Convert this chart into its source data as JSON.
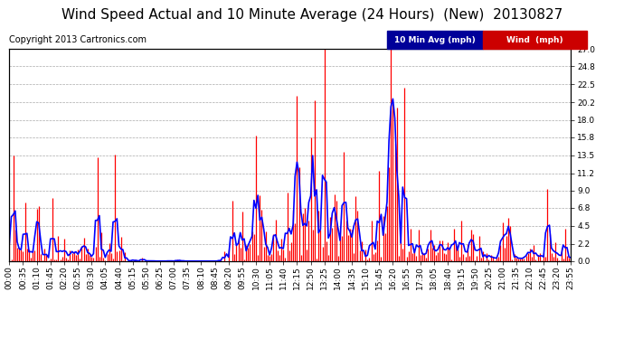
{
  "title": "Wind Speed Actual and 10 Minute Average (24 Hours)  (New)  20130827",
  "copyright": "Copyright 2013 Cartronics.com",
  "ylabel_right": [
    "0.0",
    "2.2",
    "4.5",
    "6.8",
    "9.0",
    "11.2",
    "13.5",
    "15.8",
    "18.0",
    "20.2",
    "22.5",
    "24.8",
    "27.0"
  ],
  "yticks_right": [
    0.0,
    2.2,
    4.5,
    6.8,
    9.0,
    11.2,
    13.5,
    15.8,
    18.0,
    20.2,
    22.5,
    24.8,
    27.0
  ],
  "ylim": [
    0,
    27.0
  ],
  "legend_labels": [
    "10 Min Avg (mph)",
    "Wind  (mph)"
  ],
  "legend_bg_colors": [
    "#000099",
    "#cc0000"
  ],
  "wind_color": "#ff0000",
  "avg_color": "#0000ff",
  "grid_color": "#aaaaaa",
  "bg_color": "#ffffff",
  "fig_bg_color": "#ffffff",
  "title_fontsize": 11,
  "copyright_fontsize": 7,
  "tick_fontsize": 6.5
}
